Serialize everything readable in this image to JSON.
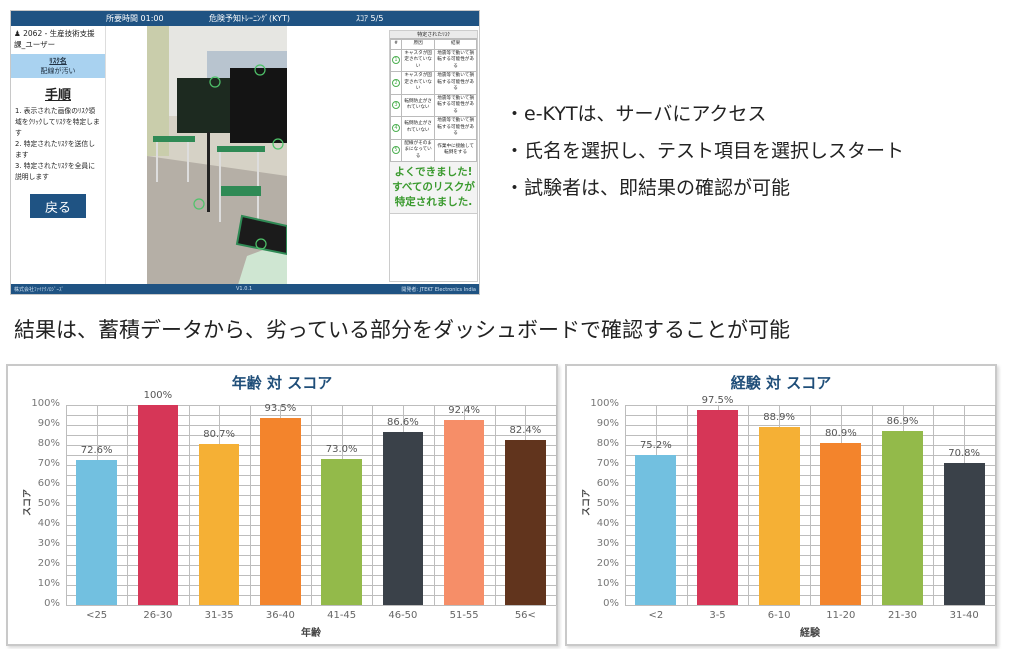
{
  "app": {
    "header": {
      "time_label": "所要時間 01:00",
      "title": "危険予知ﾄﾚｰﾆﾝｸﾞ(KYT)",
      "score": "ｽｺｱ 5/5"
    },
    "sidebar": {
      "user_icon": "user-icon",
      "user": "2062 - 生産技術支援課_ユーザー",
      "risk_name_label": "ﾘｽｸ名",
      "risk_name_value": "配線が汚い",
      "steps_title": "手順",
      "steps": [
        "1. 表示された画像のﾘｽｸ領域をｸﾘｯｸしてﾘｽｸを特定します",
        "2. 特定されたﾘｽｸを送信します",
        "3. 特定されたﾘｽｸを全員に説明します"
      ],
      "back_button": "戻る"
    },
    "panel": {
      "title": "特定されたﾘｽｸ",
      "columns": [
        "#",
        "原因",
        "結果"
      ],
      "rows": [
        {
          "num": "1",
          "cause": "キャスタが固定されていない",
          "result": "地震等で動いて損転する可能性がある"
        },
        {
          "num": "2",
          "cause": "キャスタが固定されていない",
          "result": "地震等で動いて損転する可能性がある"
        },
        {
          "num": "3",
          "cause": "転倒防止がされていない",
          "result": "地震等で動いて損転する可能性がある"
        },
        {
          "num": "4",
          "cause": "転倒防止がされていない",
          "result": "地震等で動いて損転する可能性がある"
        },
        {
          "num": "5",
          "cause": "配線がそのままになっている",
          "result": "作業中に接触して転倒をする"
        }
      ],
      "congrats": "よくできました! すべてのリスクが特定されました."
    },
    "footer": {
      "company": "株式会社ﾌｧｲﾃｸﾉﾛｼﾞｰｽﾞ",
      "version": "V1.0.1",
      "developer": "開発者: JTEKT Electronics India"
    }
  },
  "bullets": [
    "e-KYTは、サーバにアクセス",
    "氏名を選択し、テスト項目を選択しスタート",
    "試験者は、即結果の確認が可能"
  ],
  "summary": "結果は、蓄積データから、劣っている部分をダッシュボードで確認することが可能",
  "chart_data": [
    {
      "type": "bar",
      "title": "年齢 対 スコア",
      "xlabel": "年齢",
      "ylabel": "スコア",
      "ylim": [
        0,
        100
      ],
      "yticks": [
        "0%",
        "10%",
        "20%",
        "30%",
        "40%",
        "50%",
        "60%",
        "70%",
        "80%",
        "90%",
        "100%"
      ],
      "grid": true,
      "categories": [
        "<25",
        "26-30",
        "31-35",
        "36-40",
        "41-45",
        "46-50",
        "51-55",
        "56<"
      ],
      "values": [
        72.6,
        100,
        80.7,
        93.5,
        73.0,
        86.6,
        92.4,
        82.4
      ],
      "labels": [
        "72.6%",
        "100%",
        "80.7%",
        "93.5%",
        "73.0%",
        "86.6%",
        "92.4%",
        "82.4%"
      ],
      "colors": [
        "#72c0e0",
        "#d63657",
        "#f5b035",
        "#f3842c",
        "#93ba4a",
        "#3a4149",
        "#f68e68",
        "#61341d"
      ]
    },
    {
      "type": "bar",
      "title": "経験 対 スコア",
      "xlabel": "経験",
      "ylabel": "スコア",
      "ylim": [
        0,
        100
      ],
      "yticks": [
        "0%",
        "10%",
        "20%",
        "30%",
        "40%",
        "50%",
        "60%",
        "70%",
        "80%",
        "90%",
        "100%"
      ],
      "grid": true,
      "categories": [
        "<2",
        "3-5",
        "6-10",
        "11-20",
        "21-30",
        "31-40"
      ],
      "values": [
        75.2,
        97.5,
        88.9,
        80.9,
        86.9,
        70.8
      ],
      "labels": [
        "75.2%",
        "97.5%",
        "88.9%",
        "80.9%",
        "86.9%",
        "70.8%"
      ],
      "colors": [
        "#72c0e0",
        "#d63657",
        "#f5b035",
        "#f3842c",
        "#93ba4a",
        "#3a4149"
      ]
    }
  ]
}
